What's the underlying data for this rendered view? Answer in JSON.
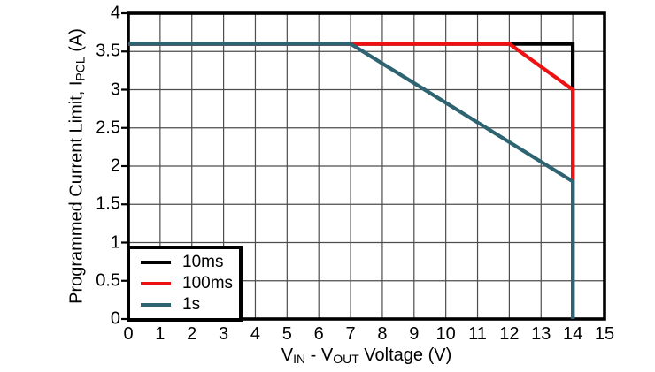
{
  "chart_data": {
    "type": "line",
    "xlabel_parts": [
      {
        "t": "V"
      },
      {
        "t": "IN",
        "sub": true
      },
      {
        "t": " - V"
      },
      {
        "t": "OUT",
        "sub": true
      },
      {
        "t": " Voltage (V)"
      }
    ],
    "ylabel_parts": [
      {
        "t": "Programmed Current Limit, I"
      },
      {
        "t": "PCL",
        "sub": true
      },
      {
        "t": " (A)"
      }
    ],
    "xlim": [
      0,
      15
    ],
    "ylim": [
      0,
      4
    ],
    "xtick_labels": [
      "0",
      "1",
      "2",
      "3",
      "4",
      "5",
      "6",
      "7",
      "8",
      "9",
      "10",
      "11",
      "12",
      "13",
      "14",
      "15"
    ],
    "ytick_labels": [
      "0",
      "0.5",
      "1",
      "1.5",
      "2",
      "2.5",
      "3",
      "3.5",
      "4"
    ],
    "grid": "on",
    "legend_position": "bottom-left",
    "series": [
      {
        "name": "10ms",
        "color": "#000000",
        "points": [
          [
            0,
            3.6
          ],
          [
            14,
            3.6
          ],
          [
            14,
            0
          ]
        ]
      },
      {
        "name": "100ms",
        "color": "#ee1111",
        "points": [
          [
            0,
            3.6
          ],
          [
            12,
            3.6
          ],
          [
            14,
            3.0
          ],
          [
            14,
            0
          ]
        ]
      },
      {
        "name": "1s",
        "color": "#2e6472",
        "points": [
          [
            0,
            3.6
          ],
          [
            7,
            3.6
          ],
          [
            14,
            1.8
          ],
          [
            14,
            0
          ]
        ]
      }
    ]
  },
  "colors": {
    "background": "#ffffff",
    "axis": "#000000",
    "grid": "#4d4d4d",
    "text": "#000000"
  }
}
